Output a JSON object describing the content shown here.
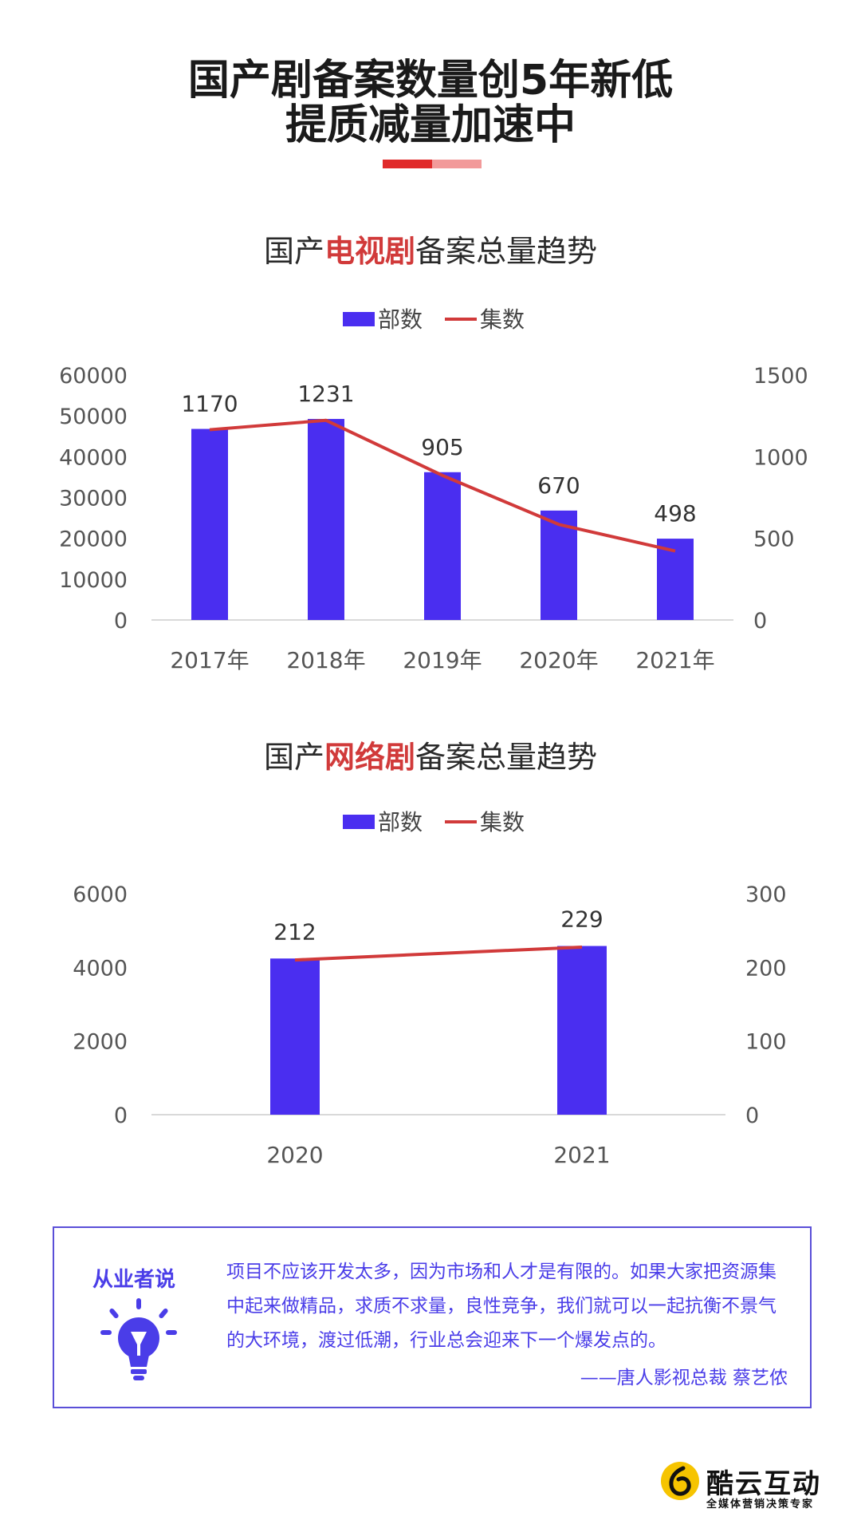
{
  "header": {
    "title_line1": "国产剧备案数量创5年新低",
    "title_line2": "提质减量加速中",
    "accent_colors": [
      "#e02a2a",
      "#f29a9a"
    ]
  },
  "chart1_title": {
    "prefix": "国产",
    "highlight": "电视剧",
    "suffix": "备案总量趋势"
  },
  "chart2_title": {
    "prefix": "国产",
    "highlight": "网络剧",
    "suffix": "备案总量趋势"
  },
  "chart_data": [
    {
      "type": "bar",
      "categories": [
        "2017年",
        "2018年",
        "2019年",
        "2020年",
        "2021年"
      ],
      "series": [
        {
          "name": "部数",
          "type": "bar",
          "axis": "right",
          "values": [
            1170,
            1231,
            905,
            670,
            498
          ],
          "color": "#4a2ef0"
        },
        {
          "name": "集数",
          "type": "line",
          "axis": "left",
          "values": [
            46600,
            48900,
            35400,
            23400,
            16900
          ],
          "color": "#d13a3a"
        }
      ],
      "data_labels": [
        "1170",
        "1231",
        "905",
        "670",
        "498"
      ],
      "y_left": {
        "ylim": [
          0,
          60000
        ],
        "ticks": [
          "0",
          "10000",
          "20000",
          "30000",
          "40000",
          "50000",
          "60000"
        ]
      },
      "y_right": {
        "ylim": [
          0,
          1500
        ],
        "ticks": [
          "0",
          "500",
          "1000",
          "1500"
        ]
      },
      "legend": [
        "部数",
        "集数"
      ],
      "legend_position": "top-center",
      "grid": false
    },
    {
      "type": "bar",
      "categories": [
        "2020",
        "2021"
      ],
      "series": [
        {
          "name": "部数",
          "type": "bar",
          "axis": "right",
          "values": [
            212,
            229
          ],
          "color": "#4a2ef0"
        },
        {
          "name": "集数",
          "type": "line",
          "axis": "left",
          "values": [
            4200,
            4550
          ],
          "color": "#d13a3a"
        }
      ],
      "data_labels": [
        "212",
        "229"
      ],
      "y_left": {
        "ylim": [
          0,
          6000
        ],
        "ticks": [
          "0",
          "2000",
          "4000",
          "6000"
        ]
      },
      "y_right": {
        "ylim": [
          0,
          300
        ],
        "ticks": [
          "0",
          "100",
          "200",
          "300"
        ]
      },
      "legend": [
        "部数",
        "集数"
      ],
      "legend_position": "top-center",
      "grid": false
    }
  ],
  "quote": {
    "label": "从业者说",
    "text": "项目不应该开发太多，因为市场和人才是有限的。如果大家把资源集中起来做精品，求质不求量，良性竞争，我们就可以一起抗衡不景气的大环境，渡过低潮，行业总会迎来下一个爆发点的。",
    "author": "——唐人影视总裁 蔡艺侬",
    "icon": "lightbulb-icon"
  },
  "logo": {
    "name": "酷云互动",
    "tagline": "全媒体营销决策专家",
    "icon": "logo-6-icon"
  }
}
